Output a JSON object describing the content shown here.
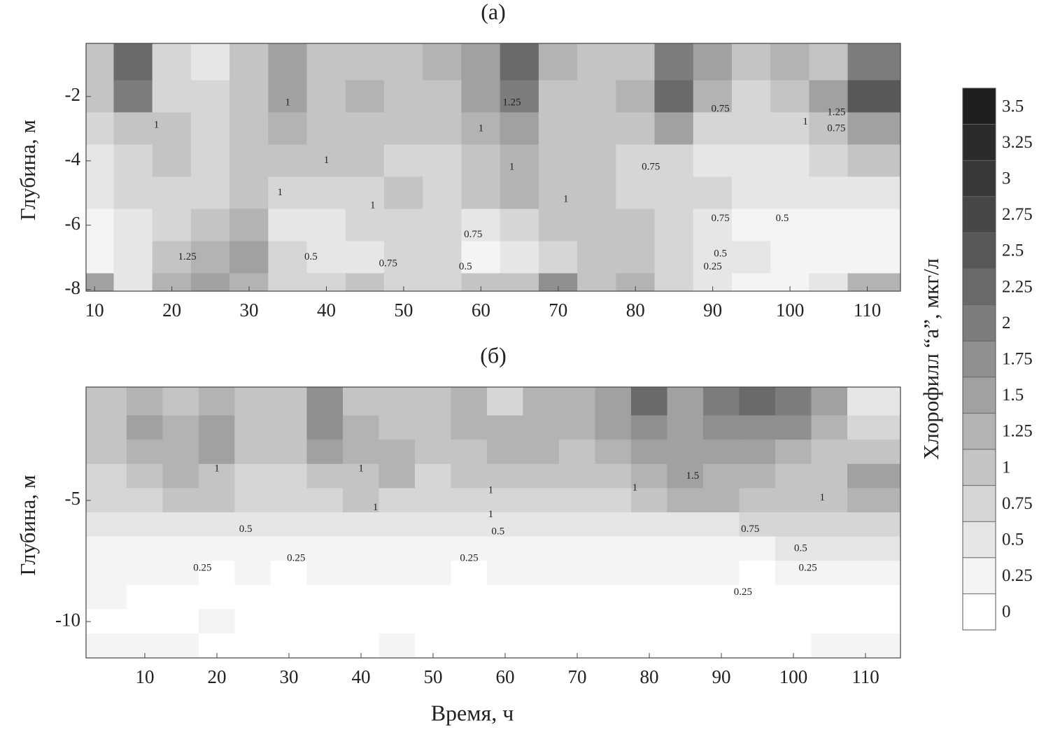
{
  "chart_data": [
    {
      "type": "contour",
      "title": "(а)",
      "ylabel": "Глубина, м",
      "xlim": [
        8.9,
        114.3
      ],
      "ylim": [
        -8.05,
        -0.35
      ],
      "xticks": [
        10,
        20,
        30,
        40,
        50,
        60,
        70,
        80,
        90,
        100,
        110
      ],
      "yticks": [
        -2,
        -4,
        -6,
        -8
      ],
      "x": [
        10,
        15,
        20,
        25,
        30,
        35,
        40,
        45,
        50,
        55,
        60,
        65,
        70,
        75,
        80,
        85,
        90,
        95,
        100,
        105,
        110
      ],
      "y": [
        -1,
        -2,
        -3,
        -4,
        -5,
        -6,
        -7,
        -8
      ],
      "z": [
        [
          1.0,
          2.25,
          0.75,
          0.5,
          1.0,
          1.5,
          1.0,
          1.0,
          1.0,
          1.25,
          1.5,
          2.25,
          1.25,
          1.0,
          1.0,
          2.0,
          1.5,
          1.0,
          1.25,
          1.0,
          2.0
        ],
        [
          1.0,
          2.0,
          0.75,
          0.75,
          1.0,
          1.5,
          1.0,
          1.25,
          1.0,
          1.0,
          1.5,
          2.0,
          1.0,
          1.0,
          1.25,
          2.25,
          1.25,
          0.75,
          1.0,
          1.5,
          2.5
        ],
        [
          0.75,
          1.0,
          1.0,
          0.75,
          1.0,
          1.25,
          1.0,
          1.0,
          1.0,
          1.0,
          1.25,
          1.5,
          1.0,
          1.0,
          1.0,
          1.5,
          0.75,
          0.75,
          0.75,
          1.0,
          1.5
        ],
        [
          0.5,
          0.75,
          1.0,
          0.75,
          1.0,
          1.0,
          1.0,
          1.0,
          0.75,
          0.75,
          1.0,
          1.25,
          1.0,
          1.0,
          0.75,
          0.75,
          0.5,
          0.5,
          0.5,
          0.75,
          1.0
        ],
        [
          0.5,
          0.75,
          0.75,
          0.75,
          1.0,
          0.75,
          0.75,
          0.75,
          1.0,
          0.75,
          1.0,
          1.25,
          1.0,
          1.0,
          0.75,
          0.75,
          0.75,
          0.5,
          0.5,
          0.5,
          0.5
        ],
        [
          0.25,
          0.5,
          0.75,
          1.0,
          1.25,
          0.5,
          0.5,
          0.75,
          0.75,
          0.75,
          0.5,
          0.75,
          1.0,
          1.0,
          1.0,
          0.75,
          0.5,
          0.25,
          0.25,
          0.25,
          0.25
        ],
        [
          0.25,
          0.5,
          1.0,
          1.25,
          1.5,
          0.75,
          0.5,
          0.5,
          0.75,
          0.75,
          0.25,
          0.5,
          0.75,
          1.0,
          1.0,
          0.75,
          0.5,
          0.5,
          0.25,
          0.25,
          0.25
        ],
        [
          1.5,
          0.5,
          1.25,
          1.5,
          1.25,
          0.75,
          0.75,
          1.0,
          0.75,
          0.75,
          1.0,
          1.0,
          1.75,
          1.0,
          1.25,
          0.75,
          0.5,
          0.25,
          0.25,
          0.5,
          1.25
        ]
      ],
      "annotations": [
        {
          "text": "1",
          "x": 18,
          "y": -2.9
        },
        {
          "text": "1",
          "x": 35,
          "y": -2.2
        },
        {
          "text": "1.25",
          "x": 64,
          "y": -2.2
        },
        {
          "text": "1",
          "x": 60,
          "y": -3
        },
        {
          "text": "0.75",
          "x": 91,
          "y": -2.4
        },
        {
          "text": "1.25",
          "x": 106,
          "y": -2.5
        },
        {
          "text": "0.75",
          "x": 106,
          "y": -3
        },
        {
          "text": "1",
          "x": 102,
          "y": -2.8
        },
        {
          "text": "1",
          "x": 40,
          "y": -4
        },
        {
          "text": "1",
          "x": 34,
          "y": -5
        },
        {
          "text": "1",
          "x": 46,
          "y": -5.4
        },
        {
          "text": "1",
          "x": 64,
          "y": -4.2
        },
        {
          "text": "1",
          "x": 71,
          "y": -5.2
        },
        {
          "text": "0.75",
          "x": 82,
          "y": -4.2
        },
        {
          "text": "0.75",
          "x": 91,
          "y": -5.8
        },
        {
          "text": "0.5",
          "x": 99,
          "y": -5.8
        },
        {
          "text": "1.25",
          "x": 22,
          "y": -7
        },
        {
          "text": "0.5",
          "x": 38,
          "y": -7
        },
        {
          "text": "0.75",
          "x": 48,
          "y": -7.2
        },
        {
          "text": "0.75",
          "x": 59,
          "y": -6.3
        },
        {
          "text": "0.5",
          "x": 58,
          "y": -7.3
        },
        {
          "text": "0.5",
          "x": 91,
          "y": -6.9
        },
        {
          "text": "0.25",
          "x": 90,
          "y": -7.3
        }
      ]
    },
    {
      "type": "contour",
      "title": "(б)",
      "ylabel": "Глубина, м",
      "xlabel": "Время, ч",
      "xlim": [
        1.85,
        114.85
      ],
      "ylim": [
        -11.5,
        -0.32
      ],
      "xticks": [
        10,
        20,
        30,
        40,
        50,
        60,
        70,
        80,
        90,
        100,
        110
      ],
      "yticks": [
        -5,
        -10
      ],
      "x": [
        5,
        10,
        15,
        20,
        25,
        30,
        35,
        40,
        45,
        50,
        55,
        60,
        65,
        70,
        75,
        80,
        85,
        90,
        95,
        100,
        105,
        110
      ],
      "y": [
        -1,
        -2,
        -3,
        -4,
        -5,
        -6,
        -7,
        -8,
        -9,
        -10,
        -11
      ],
      "z": [
        [
          1.0,
          1.25,
          1.0,
          1.25,
          1.0,
          1.0,
          1.75,
          1.0,
          1.0,
          1.0,
          1.25,
          0.75,
          1.25,
          1.25,
          1.5,
          2.25,
          1.5,
          2.0,
          2.25,
          2.0,
          1.5,
          0.5
        ],
        [
          1.0,
          1.5,
          1.25,
          1.5,
          1.0,
          1.0,
          1.75,
          1.25,
          1.0,
          1.0,
          1.25,
          1.25,
          1.25,
          1.25,
          1.5,
          1.75,
          1.5,
          1.75,
          1.75,
          1.75,
          1.25,
          0.75
        ],
        [
          1.0,
          1.25,
          1.25,
          1.5,
          1.0,
          1.0,
          1.5,
          1.25,
          1.25,
          1.0,
          1.0,
          1.25,
          1.25,
          1.0,
          1.25,
          1.5,
          1.5,
          1.5,
          1.5,
          1.25,
          1.0,
          1.0
        ],
        [
          0.75,
          1.0,
          1.25,
          1.0,
          0.75,
          0.75,
          1.0,
          1.0,
          1.25,
          0.75,
          1.0,
          1.0,
          1.0,
          1.0,
          1.0,
          1.25,
          1.5,
          1.25,
          1.25,
          1.0,
          1.0,
          1.5
        ],
        [
          0.75,
          0.75,
          1.0,
          1.0,
          0.75,
          0.75,
          0.75,
          1.0,
          0.75,
          0.75,
          0.75,
          0.75,
          0.75,
          0.75,
          0.75,
          1.0,
          1.25,
          1.25,
          1.0,
          1.0,
          1.0,
          1.25
        ],
        [
          0.5,
          0.5,
          0.5,
          0.5,
          0.5,
          0.5,
          0.5,
          0.5,
          0.5,
          0.5,
          0.5,
          0.5,
          0.5,
          0.5,
          0.5,
          0.5,
          0.5,
          0.5,
          0.75,
          0.75,
          0.75,
          0.75
        ],
        [
          0.25,
          0.25,
          0.25,
          0.25,
          0.25,
          0.25,
          0.25,
          0.25,
          0.25,
          0.25,
          0.25,
          0.25,
          0.25,
          0.25,
          0.25,
          0.25,
          0.25,
          0.25,
          0.25,
          0.5,
          0.5,
          0.5
        ],
        [
          0.25,
          0.25,
          0.25,
          0,
          0.25,
          0,
          0.25,
          0.25,
          0.25,
          0.25,
          0,
          0.25,
          0.25,
          0.25,
          0.25,
          0.25,
          0.25,
          0.25,
          0,
          0.25,
          0.25,
          0.25
        ],
        [
          0.25,
          0,
          0,
          0,
          0,
          0,
          0,
          0,
          0,
          0,
          0,
          0,
          0,
          0,
          0,
          0,
          0,
          0,
          0,
          0,
          0,
          0
        ],
        [
          0,
          0,
          0,
          0.25,
          0,
          0,
          0,
          0,
          0,
          0,
          0,
          0,
          0,
          0,
          0,
          0,
          0,
          0,
          0,
          0,
          0,
          0
        ],
        [
          0.25,
          0.25,
          0.25,
          0,
          0,
          0,
          0,
          0,
          0.25,
          0,
          0,
          0,
          0,
          0,
          0,
          0,
          0,
          0,
          0,
          0,
          0.25,
          0.25
        ]
      ],
      "annotations": [
        {
          "text": "1",
          "x": 20,
          "y": -3.7
        },
        {
          "text": "1",
          "x": 40,
          "y": -3.7
        },
        {
          "text": "1",
          "x": 42,
          "y": -5.3
        },
        {
          "text": "1",
          "x": 58,
          "y": -4.6
        },
        {
          "text": "1",
          "x": 58,
          "y": -5.6
        },
        {
          "text": "1",
          "x": 78,
          "y": -4.5
        },
        {
          "text": "1.5",
          "x": 86,
          "y": -4
        },
        {
          "text": "1",
          "x": 104,
          "y": -4.9
        },
        {
          "text": "0.5",
          "x": 24,
          "y": -6.2
        },
        {
          "text": "0.5",
          "x": 59,
          "y": -6.3
        },
        {
          "text": "0.75",
          "x": 94,
          "y": -6.2
        },
        {
          "text": "0.25",
          "x": 18,
          "y": -7.8
        },
        {
          "text": "0.25",
          "x": 31,
          "y": -7.4
        },
        {
          "text": "0.25",
          "x": 55,
          "y": -7.4
        },
        {
          "text": "0.25",
          "x": 93,
          "y": -8.8
        },
        {
          "text": "0.5",
          "x": 101,
          "y": -7
        },
        {
          "text": "0.25",
          "x": 102,
          "y": -7.8
        }
      ]
    }
  ],
  "colorbar": {
    "label": "Хлорофилл “a”, мкг/л",
    "ylim": [
      0,
      3.75
    ],
    "ticks": [
      0,
      0.25,
      0.5,
      0.75,
      1,
      1.25,
      1.5,
      1.75,
      2,
      2.25,
      2.5,
      2.75,
      3,
      3.25,
      3.5
    ],
    "colors": [
      "#ffffff",
      "#f4f4f4",
      "#e6e6e6",
      "#d6d6d6",
      "#c4c4c4",
      "#b3b3b3",
      "#a1a1a1",
      "#8f8f8f",
      "#7d7d7d",
      "#6a6a6a",
      "#585858",
      "#474747",
      "#383838",
      "#2b2b2b",
      "#1f1f1f"
    ]
  }
}
